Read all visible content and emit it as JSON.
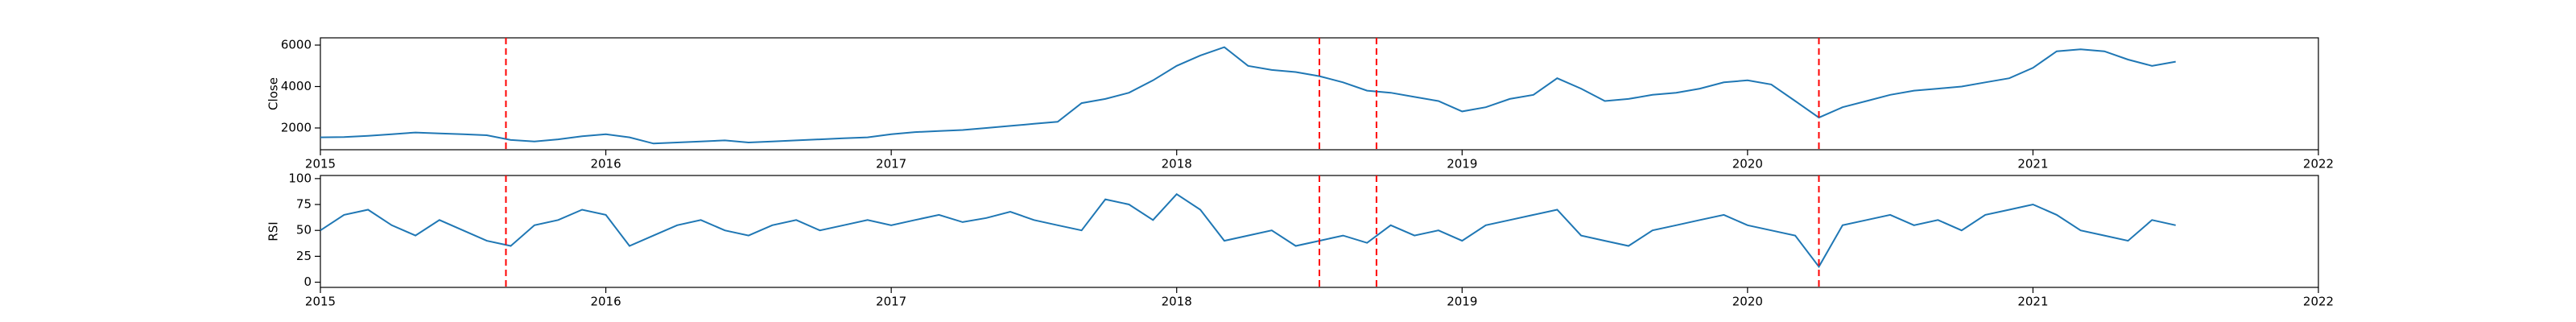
{
  "chart_data": [
    {
      "type": "line",
      "ylabel": "Close",
      "color": "#1f77b4",
      "x": [
        2015.0,
        2015.083,
        2015.167,
        2015.25,
        2015.333,
        2015.417,
        2015.5,
        2015.583,
        2015.667,
        2015.75,
        2015.833,
        2015.917,
        2016.0,
        2016.083,
        2016.167,
        2016.25,
        2016.333,
        2016.417,
        2016.5,
        2016.583,
        2016.667,
        2016.75,
        2016.833,
        2016.917,
        2017.0,
        2017.083,
        2017.167,
        2017.25,
        2017.333,
        2017.417,
        2017.5,
        2017.583,
        2017.667,
        2017.75,
        2017.833,
        2017.917,
        2018.0,
        2018.083,
        2018.167,
        2018.25,
        2018.333,
        2018.417,
        2018.5,
        2018.583,
        2018.667,
        2018.75,
        2018.833,
        2018.917,
        2019.0,
        2019.083,
        2019.167,
        2019.25,
        2019.333,
        2019.417,
        2019.5,
        2019.583,
        2019.667,
        2019.75,
        2019.833,
        2019.917,
        2020.0,
        2020.083,
        2020.167,
        2020.25,
        2020.333,
        2020.417,
        2020.5,
        2020.583,
        2020.667,
        2020.75,
        2020.833,
        2020.917,
        2021.0,
        2021.083,
        2021.167,
        2021.25,
        2021.333,
        2021.417,
        2021.5
      ],
      "values": [
        1550,
        1560,
        1620,
        1700,
        1780,
        1740,
        1700,
        1650,
        1420,
        1350,
        1450,
        1600,
        1700,
        1550,
        1250,
        1300,
        1350,
        1400,
        1300,
        1350,
        1400,
        1450,
        1500,
        1550,
        1700,
        1800,
        1850,
        1900,
        2000,
        2100,
        2200,
        2300,
        3200,
        3400,
        3700,
        4300,
        5000,
        5500,
        5900,
        5000,
        4800,
        4700,
        4500,
        4200,
        3800,
        3700,
        3500,
        3300,
        2800,
        3000,
        3400,
        3600,
        4400,
        3900,
        3300,
        3400,
        3600,
        3700,
        3900,
        4200,
        4300,
        4100,
        3300,
        2500,
        3000,
        3300,
        3600,
        3800,
        3900,
        4000,
        4200,
        4400,
        4900,
        5700,
        5800,
        5700,
        5300,
        5000,
        5200
      ],
      "xlim": [
        2015,
        2022
      ],
      "xticks": [
        2015,
        2016,
        2017,
        2018,
        2019,
        2020,
        2021,
        2022
      ],
      "ylim": [
        950,
        6350
      ],
      "yticks": [
        2000,
        4000,
        6000
      ],
      "vlines": [
        2015.65,
        2018.5,
        2018.7,
        2020.25
      ],
      "vline_color": "#ff0000"
    },
    {
      "type": "line",
      "ylabel": "RSI",
      "color": "#1f77b4",
      "x": [
        2015.0,
        2015.083,
        2015.167,
        2015.25,
        2015.333,
        2015.417,
        2015.5,
        2015.583,
        2015.667,
        2015.75,
        2015.833,
        2015.917,
        2016.0,
        2016.083,
        2016.167,
        2016.25,
        2016.333,
        2016.417,
        2016.5,
        2016.583,
        2016.667,
        2016.75,
        2016.833,
        2016.917,
        2017.0,
        2017.083,
        2017.167,
        2017.25,
        2017.333,
        2017.417,
        2017.5,
        2017.583,
        2017.667,
        2017.75,
        2017.833,
        2017.917,
        2018.0,
        2018.083,
        2018.167,
        2018.25,
        2018.333,
        2018.417,
        2018.5,
        2018.583,
        2018.667,
        2018.75,
        2018.833,
        2018.917,
        2019.0,
        2019.083,
        2019.167,
        2019.25,
        2019.333,
        2019.417,
        2019.5,
        2019.583,
        2019.667,
        2019.75,
        2019.833,
        2019.917,
        2020.0,
        2020.083,
        2020.167,
        2020.25,
        2020.333,
        2020.417,
        2020.5,
        2020.583,
        2020.667,
        2020.75,
        2020.833,
        2020.917,
        2021.0,
        2021.083,
        2021.167,
        2021.25,
        2021.333,
        2021.417,
        2021.5
      ],
      "values": [
        50,
        65,
        70,
        55,
        45,
        60,
        50,
        40,
        35,
        55,
        60,
        70,
        65,
        35,
        45,
        55,
        60,
        50,
        45,
        55,
        60,
        50,
        55,
        60,
        55,
        60,
        65,
        58,
        62,
        68,
        60,
        55,
        50,
        80,
        75,
        60,
        85,
        70,
        40,
        45,
        50,
        35,
        40,
        45,
        38,
        55,
        45,
        50,
        40,
        55,
        60,
        65,
        70,
        45,
        40,
        35,
        50,
        55,
        60,
        65,
        55,
        50,
        45,
        15,
        55,
        60,
        65,
        55,
        60,
        50,
        65,
        70,
        75,
        65,
        50,
        45,
        40,
        60,
        55
      ],
      "xlim": [
        2015,
        2022
      ],
      "xticks": [
        2015,
        2016,
        2017,
        2018,
        2019,
        2020,
        2021,
        2022
      ],
      "ylim": [
        -5,
        103
      ],
      "yticks": [
        0,
        25,
        50,
        75,
        100
      ],
      "vlines": [
        2015.65,
        2018.5,
        2018.7,
        2020.25
      ],
      "vline_color": "#ff0000"
    }
  ]
}
